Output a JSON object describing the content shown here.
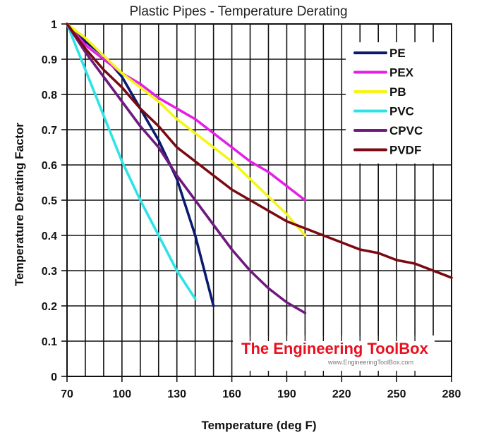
{
  "chart_data": {
    "type": "line",
    "title": "Plastic Pipes - Temperature Derating",
    "xlabel": "Temperature (deg F)",
    "ylabel": "Temperature Derating Factor",
    "xlim": [
      70,
      280
    ],
    "ylim": [
      0,
      1
    ],
    "x_ticks": [
      70,
      100,
      130,
      160,
      190,
      220,
      250,
      280
    ],
    "y_ticks": [
      "0",
      "0.1",
      "0.2",
      "0.3",
      "0.4",
      "0.5",
      "0.6",
      "0.7",
      "0.8",
      "0.9",
      "1"
    ],
    "grid": true,
    "legend_position": "upper right",
    "series": [
      {
        "name": "PE",
        "color": "#0a1a6e",
        "x": [
          70,
          80,
          90,
          100,
          110,
          120,
          130,
          140,
          150
        ],
        "values": [
          1.0,
          0.95,
          0.91,
          0.85,
          0.76,
          0.67,
          0.56,
          0.4,
          0.2
        ]
      },
      {
        "name": "PEX",
        "color": "#e51ee5",
        "x": [
          70,
          80,
          90,
          100,
          110,
          120,
          130,
          140,
          150,
          160,
          170,
          180,
          190,
          200
        ],
        "values": [
          1.0,
          0.94,
          0.9,
          0.86,
          0.83,
          0.79,
          0.76,
          0.73,
          0.69,
          0.65,
          0.61,
          0.58,
          0.54,
          0.5
        ]
      },
      {
        "name": "PB",
        "color": "#f5f516",
        "x": [
          70,
          80,
          90,
          100,
          110,
          120,
          130,
          140,
          150,
          160,
          170,
          180,
          190,
          200
        ],
        "values": [
          1.0,
          0.96,
          0.91,
          0.86,
          0.82,
          0.78,
          0.73,
          0.69,
          0.65,
          0.61,
          0.56,
          0.51,
          0.46,
          0.4
        ]
      },
      {
        "name": "PVC",
        "color": "#2ee3e6",
        "x": [
          70,
          80,
          90,
          100,
          110,
          120,
          130,
          140
        ],
        "values": [
          1.0,
          0.87,
          0.74,
          0.61,
          0.5,
          0.4,
          0.3,
          0.22
        ]
      },
      {
        "name": "CPVC",
        "color": "#6e1a7e",
        "x": [
          70,
          80,
          90,
          100,
          110,
          120,
          130,
          140,
          150,
          160,
          170,
          180,
          190,
          200
        ],
        "values": [
          1.0,
          0.92,
          0.85,
          0.78,
          0.71,
          0.65,
          0.57,
          0.5,
          0.43,
          0.36,
          0.3,
          0.25,
          0.21,
          0.18
        ]
      },
      {
        "name": "PVDF",
        "color": "#7a0a12",
        "x": [
          70,
          80,
          90,
          100,
          110,
          120,
          130,
          140,
          150,
          160,
          170,
          180,
          190,
          200,
          210,
          220,
          230,
          240,
          250,
          260,
          270,
          280
        ],
        "values": [
          1.0,
          0.93,
          0.87,
          0.82,
          0.76,
          0.71,
          0.65,
          0.61,
          0.57,
          0.53,
          0.5,
          0.47,
          0.44,
          0.42,
          0.4,
          0.38,
          0.36,
          0.35,
          0.33,
          0.32,
          0.3,
          0.28
        ]
      }
    ]
  },
  "watermark": {
    "title": "The Engineering ToolBox",
    "url": "www.EngineeringToolBox.com"
  }
}
